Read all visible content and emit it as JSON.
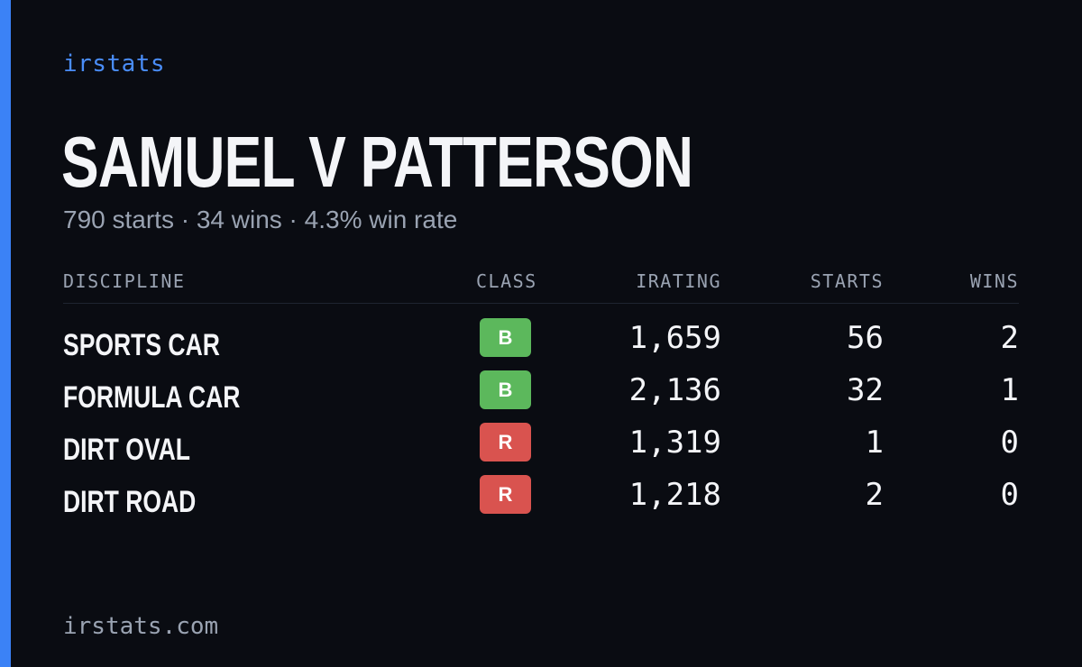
{
  "brand": "irstats",
  "driver": {
    "name": "SAMUEL V PATTERSON",
    "summary": "790 starts · 34 wins · 4.3% win rate"
  },
  "table": {
    "headers": {
      "discipline": "DISCIPLINE",
      "class": "CLASS",
      "irating": "IRATING",
      "starts": "STARTS",
      "wins": "WINS"
    },
    "rows": [
      {
        "discipline": "SPORTS CAR",
        "class": "B",
        "class_color": "#5cb85c",
        "irating": "1,659",
        "starts": "56",
        "wins": "2"
      },
      {
        "discipline": "FORMULA CAR",
        "class": "B",
        "class_color": "#5cb85c",
        "irating": "2,136",
        "starts": "32",
        "wins": "1"
      },
      {
        "discipline": "DIRT OVAL",
        "class": "R",
        "class_color": "#d9534f",
        "irating": "1,319",
        "starts": "1",
        "wins": "0"
      },
      {
        "discipline": "DIRT ROAD",
        "class": "R",
        "class_color": "#d9534f",
        "irating": "1,218",
        "starts": "2",
        "wins": "0"
      }
    ]
  },
  "footer": "irstats.com",
  "colors": {
    "background": "#0a0c12",
    "accent": "#3b82f6",
    "text": "#f4f5f8",
    "muted": "#9aa3b2"
  }
}
